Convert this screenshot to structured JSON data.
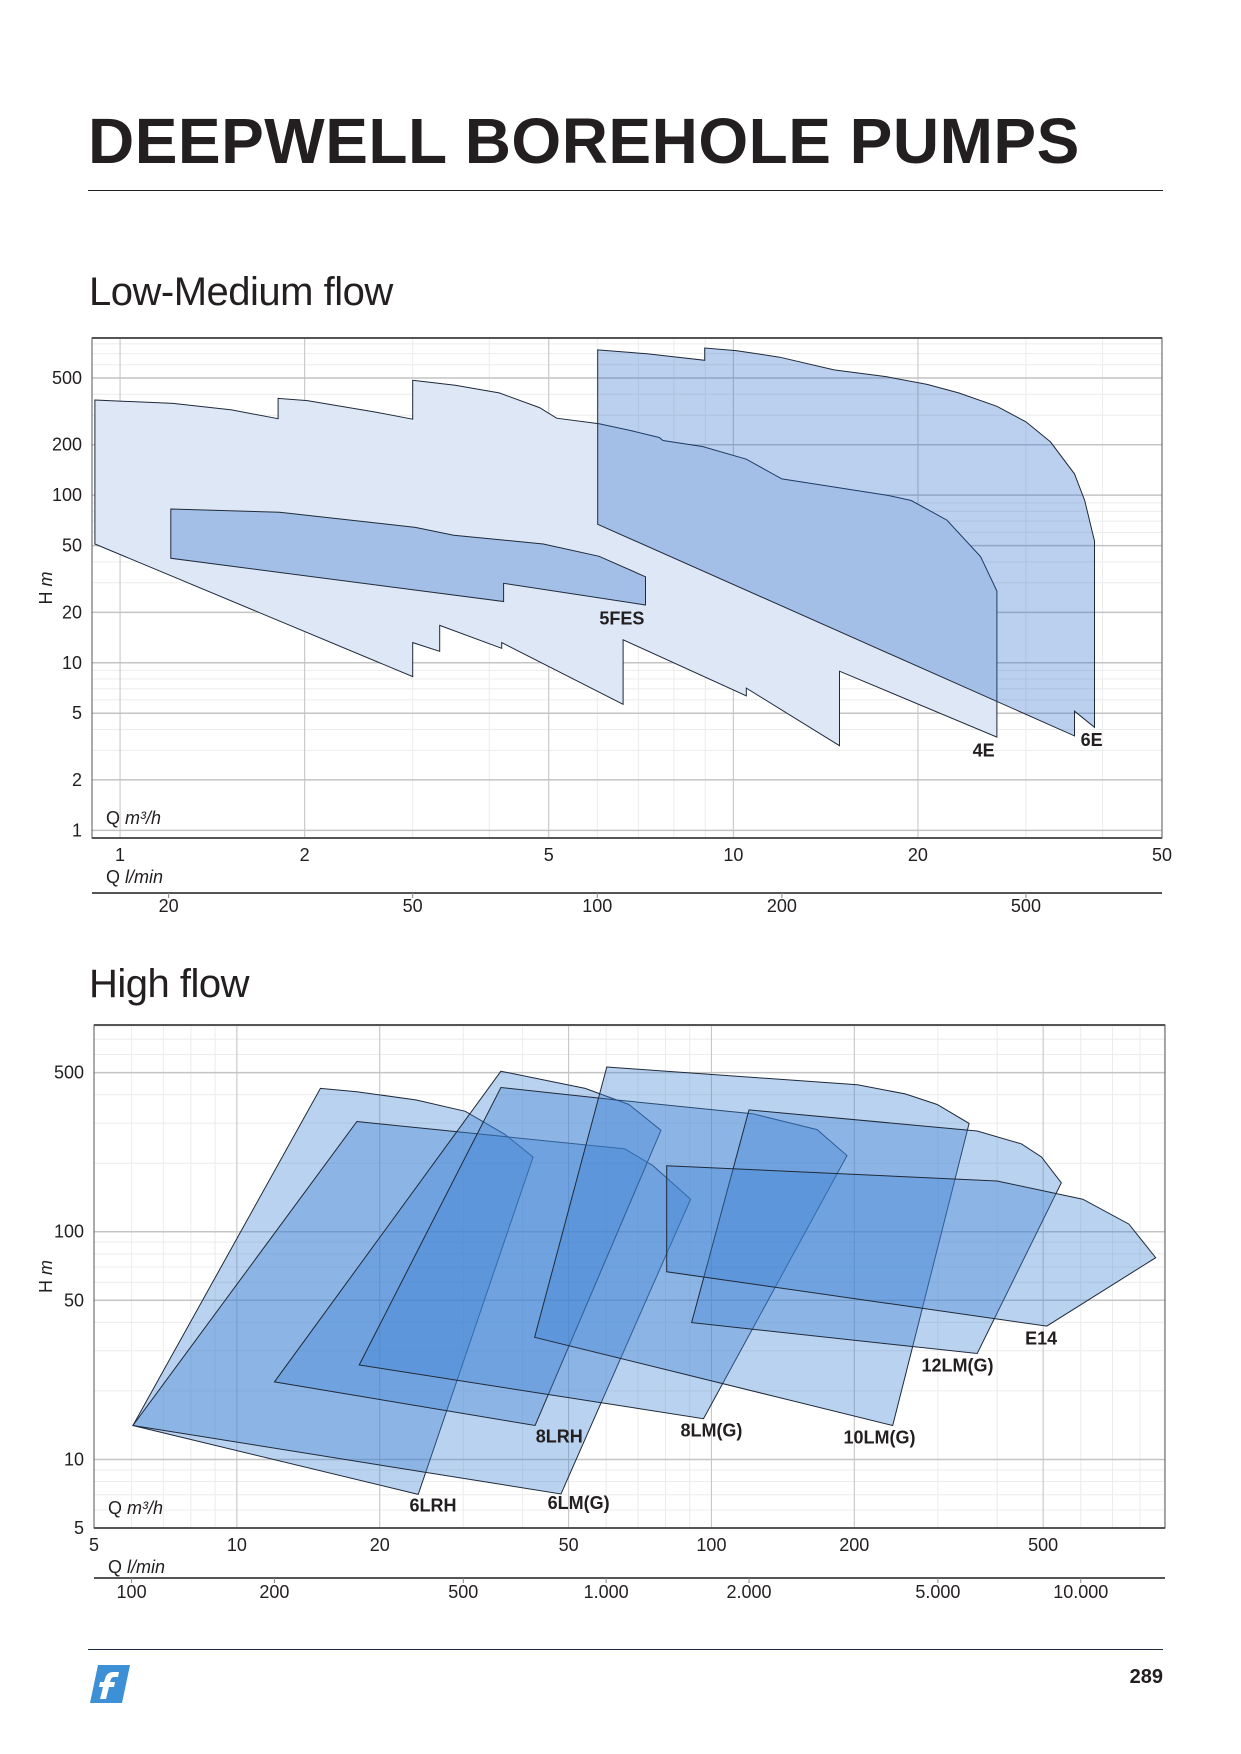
{
  "header": {
    "title": "DEEPWELL BOREHOLE PUMPS"
  },
  "footer": {
    "page_number": "289",
    "logo": "f"
  },
  "colors": {
    "brand_blue": "#3d8fd6",
    "text": "#231f20",
    "area_light": "#dde7f6",
    "area_blue": "#1e64c8",
    "area_hf": "#3c82d2"
  },
  "chart_data": [
    {
      "type": "area",
      "title": "Low-Medium flow",
      "xscale": "log",
      "yscale": "log",
      "xlabel_symbol": "Q",
      "xlabel_unit": "m³/h",
      "secondary_xlabel_symbol": "Q",
      "secondary_xlabel_unit": "l/min",
      "ylabel_symbol": "H",
      "ylabel_unit": "m",
      "xlim": [
        0.9,
        50
      ],
      "ylim": [
        0.9,
        867
      ],
      "xticks": [
        1,
        2,
        5,
        10,
        20,
        50
      ],
      "xtick_labels": [
        "1",
        "2",
        "5",
        "10",
        "20",
        "50"
      ],
      "yticks": [
        1,
        2,
        5,
        10,
        20,
        50,
        100,
        200,
        500
      ],
      "ytick_labels": [
        "1",
        "2",
        "5",
        "10",
        "20",
        "50",
        "100",
        "200",
        "500"
      ],
      "secondary_xticks": [
        20,
        50,
        100,
        200,
        500
      ],
      "secondary_xtick_labels": [
        "20",
        "50",
        "100",
        "200",
        "500"
      ],
      "grid": true,
      "series": [
        {
          "name": "4E",
          "style": "light",
          "label_at": [
            25.6,
            3.0
          ],
          "polygon": [
            [
              0.91,
              370
            ],
            [
              1.22,
              353
            ],
            [
              1.52,
              323
            ],
            [
              1.81,
              286
            ],
            [
              1.81,
              378
            ],
            [
              2.02,
              367
            ],
            [
              2.61,
              313
            ],
            [
              3.0,
              284
            ],
            [
              3.0,
              485
            ],
            [
              3.52,
              453
            ],
            [
              4.15,
              408
            ],
            [
              4.83,
              333
            ],
            [
              5.15,
              288
            ],
            [
              6.04,
              267
            ],
            [
              6.81,
              243
            ],
            [
              7.57,
              221
            ],
            [
              7.68,
              212
            ],
            [
              8.92,
              195
            ],
            [
              10.5,
              164
            ],
            [
              12.0,
              125
            ],
            [
              17.8,
              100
            ],
            [
              19.5,
              93
            ],
            [
              22.3,
              71
            ],
            [
              25.3,
              43
            ],
            [
              26.9,
              26.8
            ],
            [
              26.9,
              3.6
            ],
            [
              14.9,
              8.9
            ],
            [
              14.9,
              3.2
            ],
            [
              10.5,
              7.06
            ],
            [
              10.5,
              6.35
            ],
            [
              6.61,
              13.7
            ],
            [
              6.61,
              5.65
            ],
            [
              4.19,
              13.2
            ],
            [
              4.19,
              12.2
            ],
            [
              3.32,
              16.7
            ],
            [
              3.32,
              11.7
            ],
            [
              3.0,
              13.2
            ],
            [
              3.0,
              8.27
            ],
            [
              0.91,
              51.1
            ]
          ]
        },
        {
          "name": "5FES",
          "style": "blue",
          "label_at": [
            6.58,
            18.4
          ],
          "polygon": [
            [
              1.21,
              82.7
            ],
            [
              1.82,
              79.2
            ],
            [
              3.03,
              64.2
            ],
            [
              3.5,
              57.7
            ],
            [
              4.9,
              51.1
            ],
            [
              6.04,
              43.2
            ],
            [
              7.19,
              32.6
            ],
            [
              7.19,
              22.1
            ],
            [
              4.22,
              29.8
            ],
            [
              4.22,
              23.2
            ],
            [
              1.21,
              42.0
            ]
          ]
        },
        {
          "name": "6E",
          "style": "blue",
          "label_at": [
            38.4,
            3.46
          ],
          "polygon": [
            [
              6.01,
              736
            ],
            [
              7.23,
              698
            ],
            [
              8.98,
              638
            ],
            [
              8.98,
              756
            ],
            [
              10.1,
              729
            ],
            [
              11.9,
              666
            ],
            [
              14.6,
              559
            ],
            [
              17.8,
              509
            ],
            [
              20.7,
              458
            ],
            [
              23.3,
              408
            ],
            [
              26.9,
              339
            ],
            [
              30.0,
              274
            ],
            [
              32.9,
              208
            ],
            [
              36.0,
              134
            ],
            [
              37.4,
              93
            ],
            [
              38.8,
              53.3
            ],
            [
              38.8,
              4.12
            ],
            [
              36.0,
              5.14
            ],
            [
              36.0,
              3.66
            ],
            [
              6.01,
              67
            ]
          ]
        }
      ]
    },
    {
      "type": "area",
      "title": "High flow",
      "xscale": "log",
      "yscale": "log",
      "xlabel_symbol": "Q",
      "xlabel_unit": "m³/h",
      "secondary_xlabel_symbol": "Q",
      "secondary_xlabel_unit": "l/min",
      "ylabel_symbol": "H",
      "ylabel_unit": "m",
      "xlim": [
        5,
        903
      ],
      "ylim": [
        5,
        809
      ],
      "xticks": [
        5,
        10,
        20,
        50,
        100,
        200,
        500
      ],
      "xtick_labels": [
        "5",
        "10",
        "20",
        "50",
        "100",
        "200",
        "500"
      ],
      "yticks": [
        5,
        10,
        50,
        100,
        500
      ],
      "ytick_labels": [
        "5",
        "10",
        "50",
        "100",
        "500"
      ],
      "secondary_xticks": [
        100,
        200,
        500,
        1000,
        2000,
        5000,
        10000
      ],
      "secondary_xtick_labels": [
        "100",
        "200",
        "500",
        "1.000",
        "2.000",
        "5.000",
        "10.000"
      ],
      "grid": true,
      "series": [
        {
          "name": "6LRH",
          "label_at": [
            25.9,
            6.28
          ],
          "polygon": [
            [
              15.0,
              426
            ],
            [
              17.9,
              412
            ],
            [
              23.9,
              379
            ],
            [
              30.3,
              338
            ],
            [
              36.7,
              268
            ],
            [
              42.1,
              213
            ],
            [
              24.1,
              7.02
            ],
            [
              6.04,
              14.1
            ]
          ]
        },
        {
          "name": "6LM(G)",
          "label_at": [
            52.5,
            6.43
          ],
          "polygon": [
            [
              17.9,
              305
            ],
            [
              65.7,
              231
            ],
            [
              75.3,
              195
            ],
            [
              90.4,
              139
            ],
            [
              48.2,
              7.05
            ],
            [
              6.04,
              14.1
            ]
          ]
        },
        {
          "name": "8LRH",
          "label_at": [
            47.8,
            12.6
          ],
          "polygon": [
            [
              36.0,
              507
            ],
            [
              54.2,
              426
            ],
            [
              67.0,
              362
            ],
            [
              78.3,
              279
            ],
            [
              42.5,
              14.1
            ],
            [
              12.0,
              21.9
            ]
          ]
        },
        {
          "name": "8LM(G)",
          "label_at": [
            100,
            13.4
          ],
          "polygon": [
            [
              36.0,
              430
            ],
            [
              63.2,
              379
            ],
            [
              122,
              330
            ],
            [
              167,
              281
            ],
            [
              193,
              216
            ],
            [
              96.2,
              15.1
            ],
            [
              18.1,
              26.0
            ]
          ]
        },
        {
          "name": "10LM(G)",
          "label_at": [
            226,
            12.5
          ],
          "polygon": [
            [
              60.2,
              529
            ],
            [
              203,
              442
            ],
            [
              256,
              403
            ],
            [
              299,
              362
            ],
            [
              349,
              299
            ],
            [
              241,
              14.1
            ],
            [
              42.4,
              34.4
            ]
          ]
        },
        {
          "name": "12LM(G)",
          "label_at": [
            330,
            25.8
          ],
          "polygon": [
            [
              120,
              343
            ],
            [
              363,
              277
            ],
            [
              450,
              243
            ],
            [
              496,
              213
            ],
            [
              546,
              164
            ],
            [
              363,
              29.2
            ],
            [
              90.8,
              39.9
            ]
          ]
        },
        {
          "name": "E14",
          "label_at": [
            495,
            34
          ],
          "polygon": [
            [
              80.5,
              195
            ],
            [
              400,
              167
            ],
            [
              606,
              139
            ],
            [
              758,
              108
            ],
            [
              863,
              76.9
            ],
            [
              509,
              38.5
            ],
            [
              80.5,
              66.7
            ]
          ]
        }
      ]
    }
  ]
}
